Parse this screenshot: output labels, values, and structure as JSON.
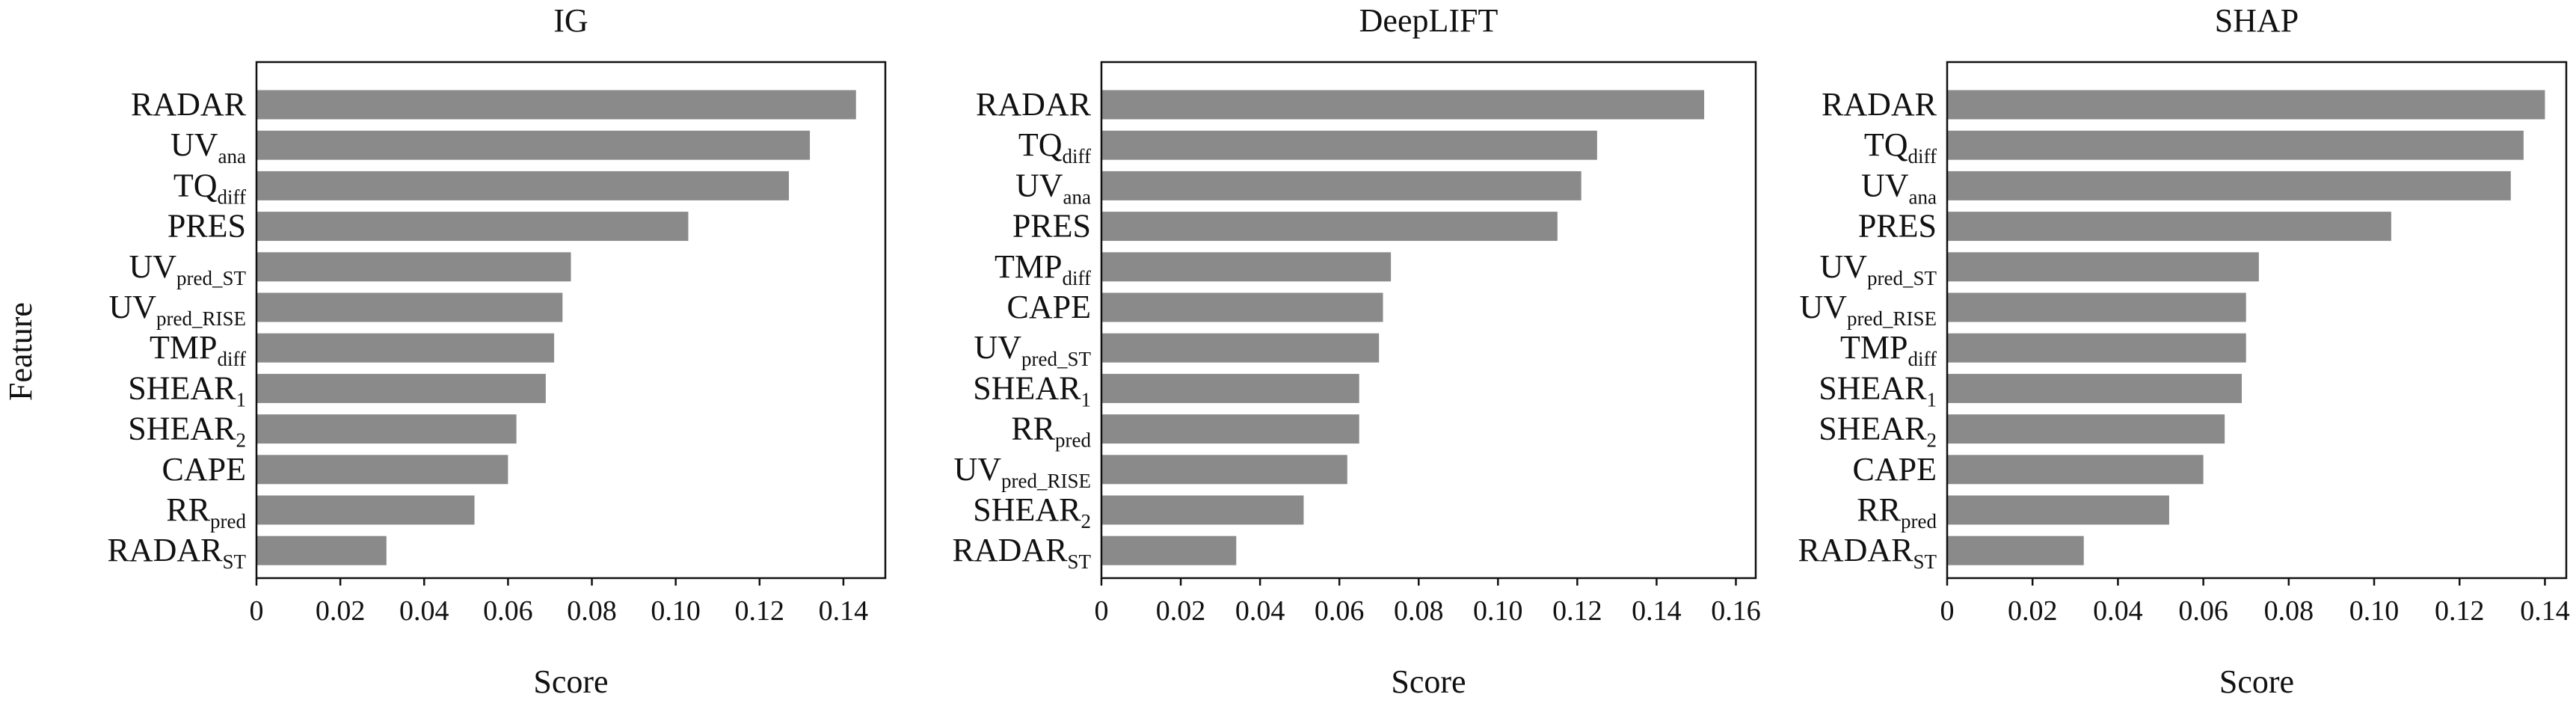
{
  "figure": {
    "ylabel": "Feature"
  },
  "chart_data": [
    {
      "type": "bar",
      "orientation": "horizontal",
      "title": "IG",
      "xlabel": "Score",
      "ylabel": "Feature",
      "xlim": [
        0,
        0.15
      ],
      "xticks": [
        "0",
        "0.02",
        "0.04",
        "0.06",
        "0.08",
        "0.10",
        "0.12",
        "0.14"
      ],
      "bar_color": "#8a8a8a",
      "categories": [
        {
          "main": "RADAR",
          "sub": ""
        },
        {
          "main": "UV",
          "sub": "ana"
        },
        {
          "main": "TQ",
          "sub": "diff"
        },
        {
          "main": "PRES",
          "sub": ""
        },
        {
          "main": "UV",
          "sub": "pred_ST"
        },
        {
          "main": "UV",
          "sub": "pred_RISE"
        },
        {
          "main": "TMP",
          "sub": "diff"
        },
        {
          "main": "SHEAR",
          "sub": "1"
        },
        {
          "main": "SHEAR",
          "sub": "2"
        },
        {
          "main": "CAPE",
          "sub": ""
        },
        {
          "main": "RR",
          "sub": "pred"
        },
        {
          "main": "RADAR",
          "sub": "ST"
        }
      ],
      "values": [
        0.143,
        0.132,
        0.127,
        0.103,
        0.075,
        0.073,
        0.071,
        0.069,
        0.062,
        0.06,
        0.052,
        0.031
      ]
    },
    {
      "type": "bar",
      "orientation": "horizontal",
      "title": "DeepLIFT",
      "xlabel": "Score",
      "xlim": [
        0,
        0.165
      ],
      "xticks": [
        "0",
        "0.02",
        "0.04",
        "0.06",
        "0.08",
        "0.10",
        "0.12",
        "0.14",
        "0.16"
      ],
      "bar_color": "#8a8a8a",
      "categories": [
        {
          "main": "RADAR",
          "sub": ""
        },
        {
          "main": "TQ",
          "sub": "diff"
        },
        {
          "main": "UV",
          "sub": "ana"
        },
        {
          "main": "PRES",
          "sub": ""
        },
        {
          "main": "TMP",
          "sub": "diff"
        },
        {
          "main": "CAPE",
          "sub": ""
        },
        {
          "main": "UV",
          "sub": "pred_ST"
        },
        {
          "main": "SHEAR",
          "sub": "1"
        },
        {
          "main": "RR",
          "sub": "pred"
        },
        {
          "main": "UV",
          "sub": "pred_RISE"
        },
        {
          "main": "SHEAR",
          "sub": "2"
        },
        {
          "main": "RADAR",
          "sub": "ST"
        }
      ],
      "values": [
        0.152,
        0.125,
        0.121,
        0.115,
        0.073,
        0.071,
        0.07,
        0.065,
        0.065,
        0.062,
        0.051,
        0.034
      ]
    },
    {
      "type": "bar",
      "orientation": "horizontal",
      "title": "SHAP",
      "xlabel": "Score",
      "xlim": [
        0,
        0.145
      ],
      "xticks": [
        "0",
        "0.02",
        "0.04",
        "0.06",
        "0.08",
        "0.10",
        "0.12",
        "0.14"
      ],
      "bar_color": "#8a8a8a",
      "categories": [
        {
          "main": "RADAR",
          "sub": ""
        },
        {
          "main": "TQ",
          "sub": "diff"
        },
        {
          "main": "UV",
          "sub": "ana"
        },
        {
          "main": "PRES",
          "sub": ""
        },
        {
          "main": "UV",
          "sub": "pred_ST"
        },
        {
          "main": "UV",
          "sub": "pred_RISE"
        },
        {
          "main": "TMP",
          "sub": "diff"
        },
        {
          "main": "SHEAR",
          "sub": "1"
        },
        {
          "main": "SHEAR",
          "sub": "2"
        },
        {
          "main": "CAPE",
          "sub": ""
        },
        {
          "main": "RR",
          "sub": "pred"
        },
        {
          "main": "RADAR",
          "sub": "ST"
        }
      ],
      "values": [
        0.14,
        0.135,
        0.132,
        0.104,
        0.073,
        0.07,
        0.07,
        0.069,
        0.065,
        0.06,
        0.052,
        0.032
      ]
    }
  ]
}
